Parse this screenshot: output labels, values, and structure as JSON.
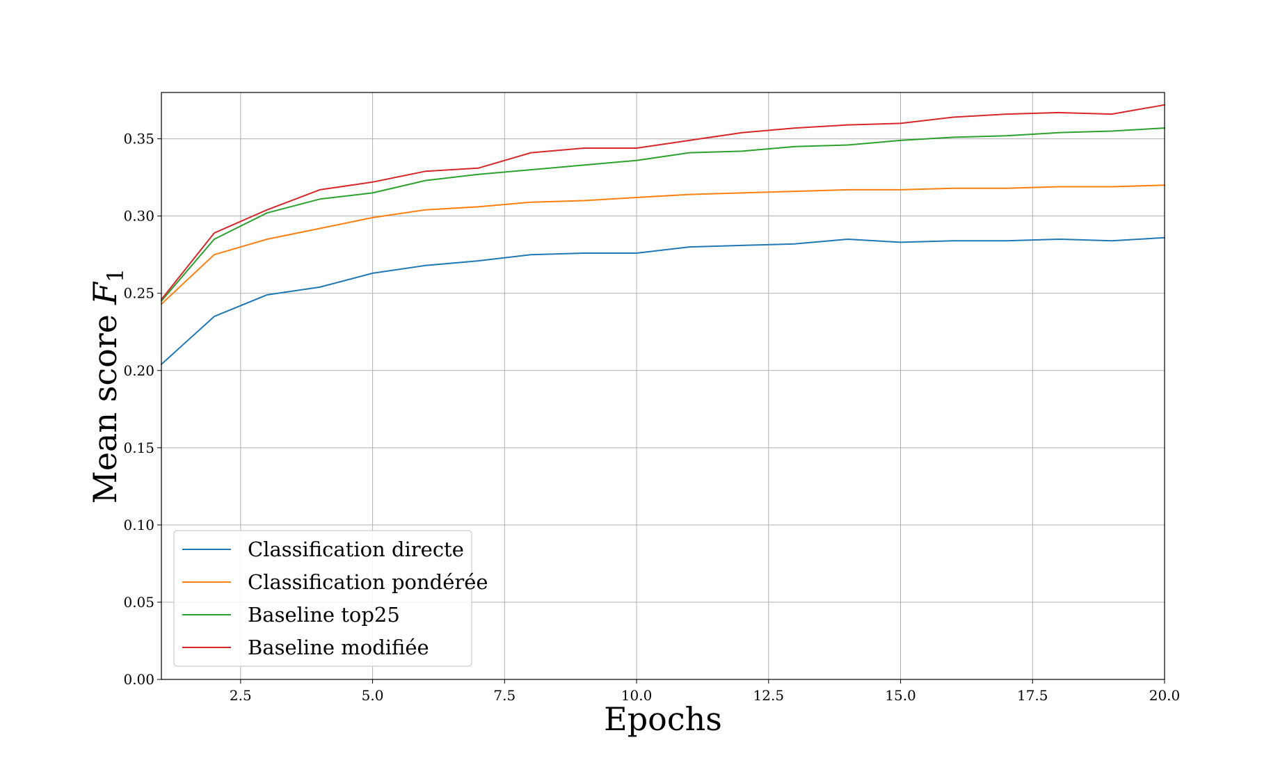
{
  "chart_data": {
    "type": "line",
    "title": "",
    "xlabel": "Epochs",
    "ylabel": "Mean score",
    "ylabel_math": "F",
    "ylabel_sub": "1",
    "xlim": [
      1,
      20
    ],
    "ylim": [
      0,
      0.38
    ],
    "grid": true,
    "legend_position": "lower-left",
    "x": [
      1,
      2,
      3,
      4,
      5,
      6,
      7,
      8,
      9,
      10,
      11,
      12,
      13,
      14,
      15,
      16,
      17,
      18,
      19,
      20
    ],
    "xticks": [
      {
        "value": 2.5,
        "label": "2.5"
      },
      {
        "value": 5.0,
        "label": "5.0"
      },
      {
        "value": 7.5,
        "label": "7.5"
      },
      {
        "value": 10.0,
        "label": "10.0"
      },
      {
        "value": 12.5,
        "label": "12.5"
      },
      {
        "value": 15.0,
        "label": "15.0"
      },
      {
        "value": 17.5,
        "label": "17.5"
      },
      {
        "value": 20.0,
        "label": "20.0"
      }
    ],
    "yticks": [
      {
        "value": 0.0,
        "label": "0.00"
      },
      {
        "value": 0.05,
        "label": "0.05"
      },
      {
        "value": 0.1,
        "label": "0.10"
      },
      {
        "value": 0.15,
        "label": "0.15"
      },
      {
        "value": 0.2,
        "label": "0.20"
      },
      {
        "value": 0.25,
        "label": "0.25"
      },
      {
        "value": 0.3,
        "label": "0.30"
      },
      {
        "value": 0.35,
        "label": "0.35"
      }
    ],
    "series": [
      {
        "name": "Classification directe",
        "color": "#1f77b4",
        "values": [
          0.204,
          0.235,
          0.249,
          0.254,
          0.263,
          0.268,
          0.271,
          0.275,
          0.276,
          0.276,
          0.28,
          0.281,
          0.282,
          0.285,
          0.283,
          0.284,
          0.284,
          0.285,
          0.284,
          0.286
        ]
      },
      {
        "name": "Classification pondérée",
        "color": "#ff7f0e",
        "values": [
          0.243,
          0.275,
          0.285,
          0.292,
          0.299,
          0.304,
          0.306,
          0.309,
          0.31,
          0.312,
          0.314,
          0.315,
          0.316,
          0.317,
          0.317,
          0.318,
          0.318,
          0.319,
          0.319,
          0.32
        ]
      },
      {
        "name": "Baseline top25",
        "color": "#2ca02c",
        "values": [
          0.245,
          0.285,
          0.302,
          0.311,
          0.315,
          0.323,
          0.327,
          0.33,
          0.333,
          0.336,
          0.341,
          0.342,
          0.345,
          0.346,
          0.349,
          0.351,
          0.352,
          0.354,
          0.355,
          0.357
        ]
      },
      {
        "name": "Baseline modifiée",
        "color": "#d62728",
        "values": [
          0.246,
          0.289,
          0.304,
          0.317,
          0.322,
          0.329,
          0.331,
          0.341,
          0.344,
          0.344,
          0.349,
          0.354,
          0.357,
          0.359,
          0.36,
          0.364,
          0.366,
          0.367,
          0.366,
          0.372
        ]
      }
    ]
  }
}
